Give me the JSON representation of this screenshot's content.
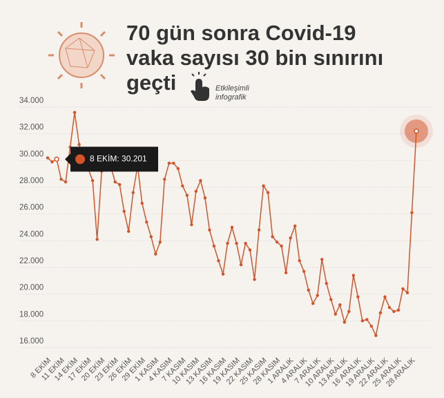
{
  "chart_data": {
    "type": "line",
    "title": "70 gün sonra Covid-19 vaka sayısı 30 bin sınırını geçti",
    "subtitle": "Etkileşimli infografik",
    "tooltip": "8 EKİM: 30.201",
    "color": "#d4542a",
    "grid": true,
    "categories": [
      "8 EKİM",
      null,
      null,
      "11 EKİM",
      null,
      null,
      "14 EKİM",
      null,
      null,
      "17 EKİM",
      null,
      null,
      "20 EKİM",
      null,
      null,
      "23 EKİM",
      null,
      null,
      "26 EKİM",
      null,
      null,
      "29 EKİM",
      null,
      null,
      "1 KASIM",
      null,
      null,
      "4 KASIM",
      null,
      null,
      "7 KASIM",
      null,
      null,
      "10 KASIM",
      null,
      null,
      "13 KASIM",
      null,
      null,
      "16 KASIM",
      null,
      null,
      "19 KASIM",
      null,
      null,
      "22 KASIM",
      null,
      null,
      "25 KASIM",
      null,
      null,
      "28 KASIM",
      null,
      null,
      "1 ARALIK",
      null,
      null,
      "4 ARALIK",
      null,
      null,
      "7 ARALIK",
      null,
      null,
      "10 ARALIK",
      null,
      null,
      "13 ARALIK",
      null,
      null,
      "16 ARALIK",
      null,
      null,
      "19 ARALIK",
      null,
      null,
      "22 ARALIK",
      null,
      null,
      "25 ARALIK",
      null,
      null,
      "28 ARALIK",
      null
    ],
    "values": [
      30201,
      29900,
      30100,
      28600,
      28400,
      31000,
      33600,
      31200,
      30000,
      29400,
      28500,
      24100,
      29200,
      29600,
      29600,
      28400,
      28200,
      26200,
      24700,
      27600,
      29600,
      26800,
      25400,
      24300,
      23000,
      23900,
      28600,
      29800,
      29800,
      29400,
      28100,
      27400,
      25200,
      27700,
      28500,
      27200,
      24800,
      23600,
      22500,
      21500,
      23800,
      25000,
      23800,
      22200,
      23800,
      23300,
      21100,
      24800,
      28100,
      27600,
      24300,
      23900,
      23600,
      21600,
      24200,
      25100,
      22500,
      21700,
      20300,
      19300,
      19900,
      22600,
      20800,
      19600,
      18500,
      19200,
      17900,
      18700,
      21400,
      19800,
      18000,
      18100,
      17600,
      16900,
      18600,
      19800,
      19000,
      18700,
      18800,
      20400,
      20100,
      26100,
      32200
    ],
    "ylim": [
      16000,
      34000
    ],
    "yticks": [
      {
        "value": 16000,
        "label": "16.000"
      },
      {
        "value": 18000,
        "label": "18.000"
      },
      {
        "value": 20000,
        "label": "20.000"
      },
      {
        "value": 22000,
        "label": "22.000"
      },
      {
        "value": 24000,
        "label": "24.000"
      },
      {
        "value": 26000,
        "label": "26.000"
      },
      {
        "value": 28000,
        "label": "28.000"
      },
      {
        "value": 30000,
        "label": "30.000"
      },
      {
        "value": 32000,
        "label": "32.000"
      },
      {
        "value": 34000,
        "label": "34.000"
      }
    ]
  }
}
